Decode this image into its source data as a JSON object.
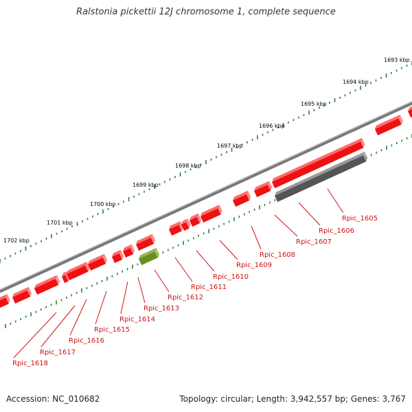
{
  "title": "Ralstonia pickettii 12J chromosome 1, complete sequence",
  "footer": {
    "accession": "Accession: NC_010682",
    "summary": "Topology: circular; Length: 3,942,557 bp; Genes: 3,767"
  },
  "colors": {
    "gene_red": "#ee1111",
    "gene_red_top": "#ff6a6a",
    "gene_gray": "#555555",
    "gene_olive": "#6b8e23",
    "backbone": "#888888",
    "tick_green": "#2e7d32",
    "label_red": "#cc1111"
  },
  "scale_ticks": [
    "1702 kbp",
    "1701 kbp",
    "1700 kbp",
    "1699 kbp",
    "1698 kbp",
    "1697 kbp",
    "1696 kbp",
    "1695 kbp",
    "1694 kbp",
    "1693 kbp"
  ],
  "gene_labels": [
    "Rpic_1605",
    "Rpic_1606",
    "Rpic_1607",
    "Rpic_1608",
    "Rpic_1609",
    "Rpic_1610",
    "Rpic_1611",
    "Rpic_1612",
    "Rpic_1613",
    "Rpic_1614",
    "Rpic_1615",
    "Rpic_1616",
    "Rpic_1617",
    "Rpic_1618"
  ]
}
